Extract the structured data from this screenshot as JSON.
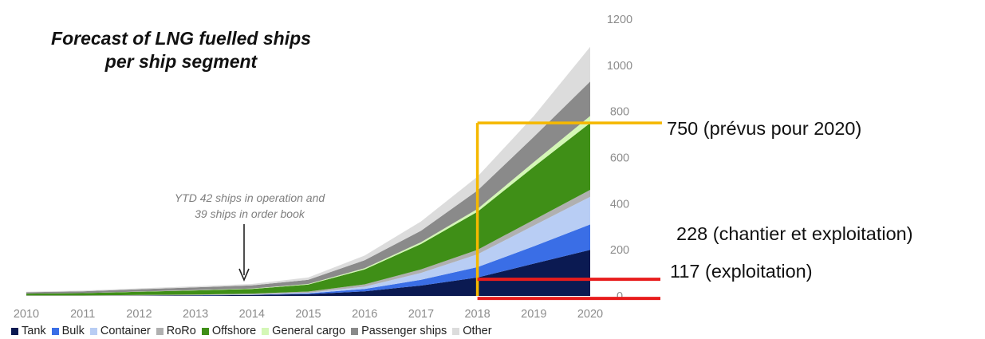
{
  "chart_data": {
    "type": "area",
    "stacked": true,
    "title": "Forecast of LNG fuelled ships\nper ship segment",
    "x": [
      "2010",
      "2011",
      "2012",
      "2013",
      "2014",
      "2015",
      "2016",
      "2017",
      "2018",
      "2019",
      "2020"
    ],
    "yticks": [
      "0",
      "200",
      "400",
      "600",
      "800",
      "1000",
      "1200"
    ],
    "ylim": [
      0,
      1200
    ],
    "y_axis_position": "right",
    "grid": false,
    "legend_position": "bottom",
    "series": [
      {
        "name": "Tank",
        "color": "#0b1a52",
        "values": [
          0,
          0,
          1,
          2,
          4,
          8,
          20,
          45,
          80,
          140,
          200
        ]
      },
      {
        "name": "Bulk",
        "color": "#3a6ee6",
        "values": [
          0,
          0,
          0,
          1,
          1,
          3,
          10,
          25,
          45,
          75,
          110
        ]
      },
      {
        "name": "Container",
        "color": "#b8cdf4",
        "values": [
          0,
          0,
          0,
          0,
          1,
          3,
          10,
          30,
          55,
          90,
          120
        ]
      },
      {
        "name": "RoRo",
        "color": "#b0b0b0",
        "values": [
          2,
          2,
          3,
          3,
          4,
          5,
          10,
          15,
          20,
          25,
          30
        ]
      },
      {
        "name": "Offshore",
        "color": "#3f8f17",
        "values": [
          8,
          10,
          14,
          18,
          20,
          30,
          65,
          110,
          165,
          230,
          290
        ]
      },
      {
        "name": "General cargo",
        "color": "#d4f7b6",
        "values": [
          0,
          0,
          1,
          1,
          2,
          3,
          5,
          8,
          12,
          20,
          30
        ]
      },
      {
        "name": "Passenger ships",
        "color": "#8a8a8a",
        "values": [
          6,
          8,
          10,
          12,
          14,
          18,
          35,
          50,
          80,
          110,
          150
        ]
      },
      {
        "name": "Other",
        "color": "#dcdcdc",
        "values": [
          2,
          3,
          4,
          5,
          6,
          10,
          20,
          40,
          60,
          90,
          150
        ]
      }
    ],
    "annotations": {
      "ytd_note": "YTD 42 ships in operation and\n39 ships in order book",
      "callouts": [
        {
          "label": "750 (prévus pour 2020)",
          "value": 750,
          "color": "#f5b800"
        },
        {
          "label": "228 (chantier et exploitation)",
          "value": 228,
          "color": "#e81c1c"
        },
        {
          "label": "117 (exploitation)",
          "value": 117,
          "color": "#e81c1c"
        }
      ],
      "marker_year": "2018"
    }
  }
}
